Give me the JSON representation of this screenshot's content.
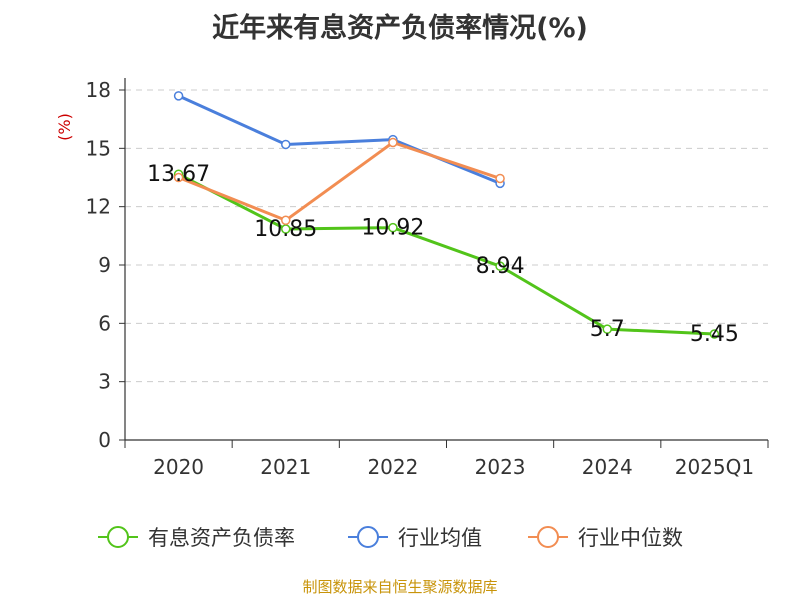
{
  "chart_data": {
    "type": "line",
    "title": "近年来有息资产负债率情况(%)",
    "ylabel": "(%)",
    "xlabel": "",
    "categories": [
      "2020",
      "2021",
      "2022",
      "2023",
      "2024",
      "2025Q1"
    ],
    "ylim": [
      0,
      18
    ],
    "yticks": [
      0,
      3,
      6,
      9,
      12,
      15,
      18
    ],
    "grid": true,
    "legend_position": "bottom",
    "series": [
      {
        "name": "有息资产负债率",
        "color": "#52c41a",
        "values": [
          13.67,
          10.85,
          10.92,
          8.94,
          5.7,
          5.45
        ],
        "labels": [
          "13.67",
          "10.85",
          "10.92",
          "8.94",
          "5.7",
          "5.45"
        ]
      },
      {
        "name": "行业均值",
        "color": "#4a7fdc",
        "values": [
          17.7,
          15.2,
          15.45,
          13.2,
          null,
          null
        ]
      },
      {
        "name": "行业中位数",
        "color": "#f28d52",
        "values": [
          13.5,
          11.3,
          15.3,
          13.45,
          null,
          null
        ]
      }
    ]
  },
  "source": "制图数据来自恒生聚源数据库"
}
